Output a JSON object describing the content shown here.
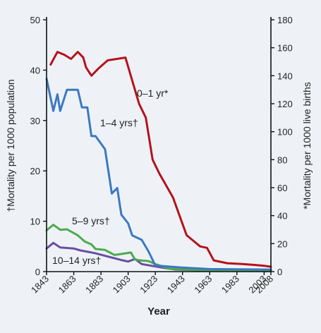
{
  "chart_data": {
    "type": "line",
    "xlabel": "Year",
    "ylabel_left": "†Mortality per 1000 population",
    "ylabel_right": "*Mortality  per 1000 live births",
    "xlim": [
      1843,
      2008
    ],
    "ylim_left": [
      0,
      50
    ],
    "ylim_right": [
      0,
      180
    ],
    "x_ticks": [
      1843,
      1863,
      1883,
      1903,
      1923,
      1943,
      1963,
      1983,
      2003,
      2008
    ],
    "y_ticks_left": [
      0,
      10,
      20,
      30,
      40,
      50
    ],
    "y_ticks_right": [
      0,
      20,
      40,
      60,
      80,
      100,
      120,
      140,
      160,
      180
    ],
    "grid": false,
    "colors": {
      "background": "#eef2f7",
      "axis": "#111111",
      "infant": "#b5121b",
      "age1_4": "#3b78c2",
      "age5_9": "#4caa4c",
      "age10_14": "#6a4ea0"
    },
    "series": [
      {
        "name": "0–1 yr*",
        "axis": "right",
        "color": "#b5121b",
        "points": [
          [
            1846,
            148
          ],
          [
            1851,
            157
          ],
          [
            1856,
            155
          ],
          [
            1861,
            152
          ],
          [
            1866,
            157
          ],
          [
            1870,
            153
          ],
          [
            1872,
            146
          ],
          [
            1876,
            140
          ],
          [
            1881,
            145
          ],
          [
            1888,
            151
          ],
          [
            1901,
            153
          ],
          [
            1911,
            120
          ],
          [
            1916,
            110
          ],
          [
            1921,
            80
          ],
          [
            1926,
            70
          ],
          [
            1936,
            53
          ],
          [
            1946,
            26
          ],
          [
            1951,
            22
          ],
          [
            1956,
            18
          ],
          [
            1961,
            17
          ],
          [
            1966,
            8
          ],
          [
            1971,
            7
          ],
          [
            1976,
            6
          ],
          [
            1986,
            5.5
          ],
          [
            1996,
            4.8
          ],
          [
            2003,
            4.2
          ],
          [
            2008,
            3.5
          ]
        ]
      },
      {
        "name": "1–4 yrs†",
        "axis": "left",
        "color": "#3b78c2",
        "points": [
          [
            1843,
            38.3
          ],
          [
            1848,
            31.9
          ],
          [
            1851,
            35.2
          ],
          [
            1853,
            31.9
          ],
          [
            1858,
            36.1
          ],
          [
            1866,
            36.1
          ],
          [
            1869,
            32.6
          ],
          [
            1873,
            32.6
          ],
          [
            1876,
            26.9
          ],
          [
            1879,
            26.9
          ],
          [
            1886,
            24.3
          ],
          [
            1891,
            15.5
          ],
          [
            1895,
            16.6
          ],
          [
            1898,
            11.3
          ],
          [
            1903,
            9.6
          ],
          [
            1906,
            7.2
          ],
          [
            1913,
            6.3
          ],
          [
            1918,
            4
          ],
          [
            1923,
            1.2
          ],
          [
            1943,
            0.8
          ],
          [
            1963,
            0.5
          ],
          [
            2008,
            0.4
          ]
        ]
      },
      {
        "name": "5–9 yrs†",
        "axis": "left",
        "color": "#4caa4c",
        "points": [
          [
            1843,
            8.2
          ],
          [
            1848,
            9.3
          ],
          [
            1853,
            8.3
          ],
          [
            1858,
            8.4
          ],
          [
            1866,
            7.2
          ],
          [
            1871,
            6.0
          ],
          [
            1876,
            5.4
          ],
          [
            1879,
            4.5
          ],
          [
            1886,
            4.3
          ],
          [
            1893,
            3.3
          ],
          [
            1898,
            3.5
          ],
          [
            1905,
            3.8
          ],
          [
            1908,
            2.4
          ],
          [
            1913,
            2.2
          ],
          [
            1918,
            2.1
          ],
          [
            1923,
            1.5
          ],
          [
            1933,
            0.6
          ],
          [
            1943,
            0.4
          ],
          [
            1963,
            0.3
          ],
          [
            2008,
            0.2
          ]
        ]
      },
      {
        "name": "10–14 yrs†",
        "axis": "left",
        "color": "#6a4ea0",
        "points": [
          [
            1843,
            4.6
          ],
          [
            1848,
            5.7
          ],
          [
            1853,
            4.8
          ],
          [
            1863,
            4.6
          ],
          [
            1868,
            4.2
          ],
          [
            1878,
            3.7
          ],
          [
            1888,
            3.0
          ],
          [
            1898,
            2.3
          ],
          [
            1903,
            2.0
          ],
          [
            1908,
            2.5
          ],
          [
            1913,
            1.5
          ],
          [
            1928,
            0.8
          ],
          [
            1938,
            0.4
          ],
          [
            1963,
            0.2
          ],
          [
            2008,
            0.1
          ]
        ]
      }
    ],
    "annotations": [
      {
        "series": 0,
        "text": "0–1 yr*"
      },
      {
        "series": 1,
        "text": "1–4 yrs†"
      },
      {
        "series": 2,
        "text": "5–9 yrs†"
      },
      {
        "series": 3,
        "text": "10–14 yrs†"
      }
    ]
  }
}
